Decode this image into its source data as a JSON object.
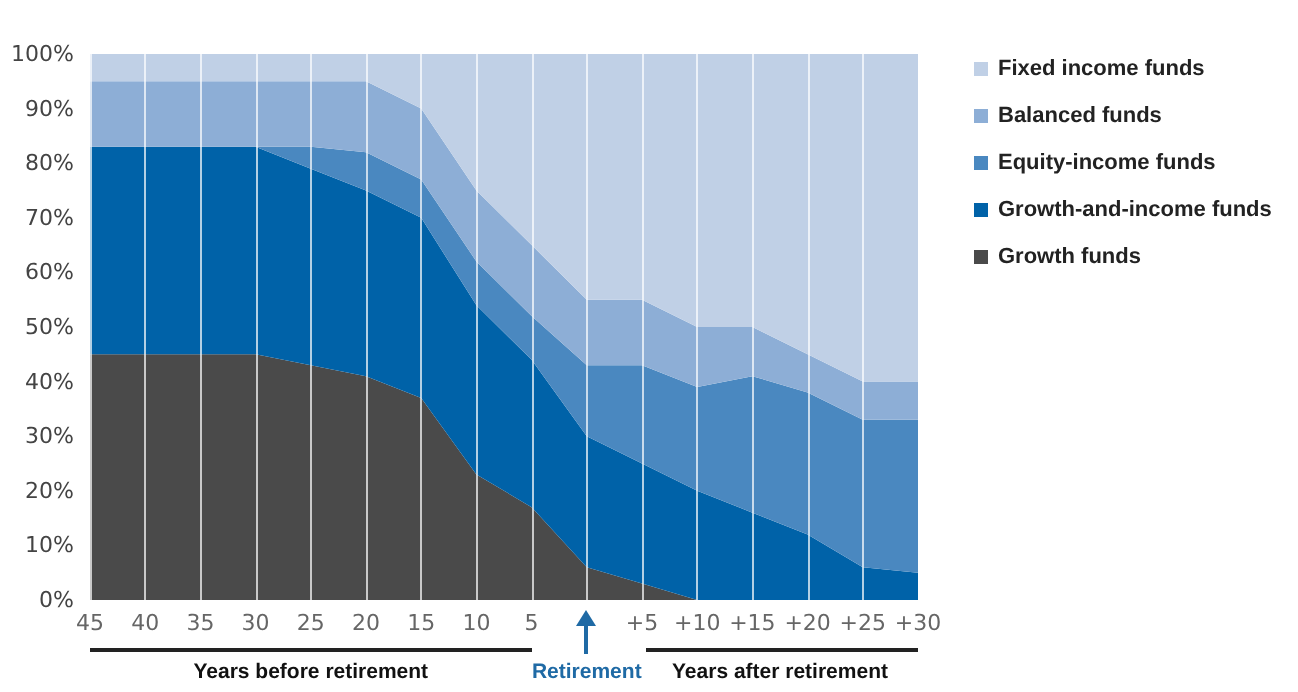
{
  "chart_data": {
    "type": "area",
    "stacked": true,
    "categories": [
      "45",
      "40",
      "35",
      "30",
      "25",
      "20",
      "15",
      "10",
      "5",
      null,
      "+5",
      "+10",
      "+15",
      "+20",
      "+25",
      "+30"
    ],
    "series": [
      {
        "name": "Growth funds",
        "color": "#4a4a4a",
        "values": [
          45,
          45,
          45,
          45,
          43,
          41,
          37,
          23,
          17,
          6,
          3,
          0,
          0,
          0,
          0,
          0
        ]
      },
      {
        "name": "Growth-and-income funds",
        "color": "#0062a8",
        "values": [
          38,
          38,
          38,
          38,
          36,
          34,
          33,
          31,
          27,
          24,
          22,
          20,
          16,
          12,
          6,
          5
        ]
      },
      {
        "name": "Equity-income funds",
        "color": "#4a88c0",
        "values": [
          0,
          0,
          0,
          0,
          4,
          7,
          7,
          8,
          8,
          13,
          18,
          19,
          25,
          26,
          27,
          28
        ]
      },
      {
        "name": "Balanced funds",
        "color": "#8daed6",
        "values": [
          12,
          12,
          12,
          12,
          12,
          13,
          13,
          13,
          13,
          12,
          12,
          11,
          9,
          7,
          7,
          7
        ]
      },
      {
        "name": "Fixed income funds",
        "color": "#c0d0e6",
        "values": [
          5,
          5,
          5,
          5,
          5,
          5,
          10,
          25,
          35,
          45,
          45,
          50,
          50,
          55,
          60,
          60
        ]
      }
    ],
    "ylim": [
      0,
      100
    ],
    "yticks": [
      {
        "value": 0,
        "label": "0%"
      },
      {
        "value": 10,
        "label": "10%"
      },
      {
        "value": 20,
        "label": "20%"
      },
      {
        "value": 30,
        "label": "30%"
      },
      {
        "value": 40,
        "label": "40%"
      },
      {
        "value": 50,
        "label": "50%"
      },
      {
        "value": 60,
        "label": "60%"
      },
      {
        "value": 70,
        "label": "70%"
      },
      {
        "value": 80,
        "label": "80%"
      },
      {
        "value": 90,
        "label": "90%"
      },
      {
        "value": 100,
        "label": "100%"
      }
    ],
    "grid": "x",
    "legend": "top right",
    "annotations": [
      "Years before retirement",
      "Retirement",
      "Years after retirement"
    ]
  }
}
